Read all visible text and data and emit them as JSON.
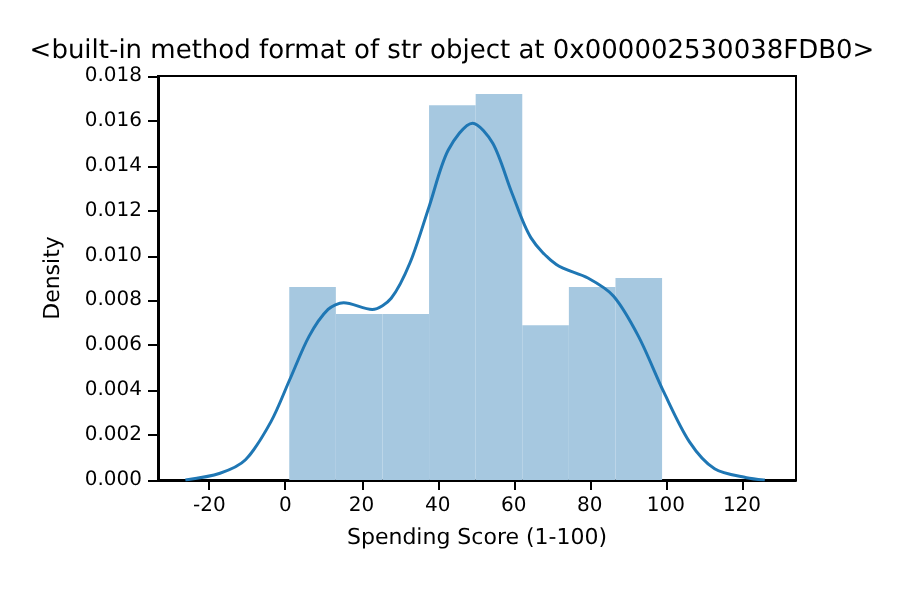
{
  "chart_data": {
    "type": "histogram",
    "title": "<built-in method format of str object at 0x000002530038FDB0>",
    "xlabel": "Spending Score (1-100)",
    "ylabel": "Density",
    "xlim": [
      -33.5,
      134.2
    ],
    "xticks": [
      -20,
      0,
      20,
      40,
      60,
      80,
      100,
      120
    ],
    "ylim": [
      0,
      0.018
    ],
    "yticks": [
      {
        "value": 0,
        "label": "0.000"
      },
      {
        "value": 0.002,
        "label": "0.002"
      },
      {
        "value": 0.004,
        "label": "0.004"
      },
      {
        "value": 0.006,
        "label": "0.006"
      },
      {
        "value": 0.008,
        "label": "0.008"
      },
      {
        "value": 0.01,
        "label": "0.010"
      },
      {
        "value": 0.012,
        "label": "0.012"
      },
      {
        "value": 0.014,
        "label": "0.014"
      },
      {
        "value": 0.016,
        "label": "0.016"
      },
      {
        "value": 0.018,
        "label": "0.018"
      }
    ],
    "marker": "none",
    "line_style": "solid",
    "series": [
      {
        "color": "#a6c8e0",
        "bins": [
          1,
          13.25,
          25.5,
          37.75,
          50,
          62.25,
          74.5,
          86.75,
          99
        ],
        "values": [
          0.0086,
          0.0074,
          0.0074,
          0.0167,
          0.0172,
          0.0069,
          0.0086,
          0.009
        ]
      },
      {
        "type": "line",
        "color": "#1f77b4",
        "x": [
          -26.3,
          -17.2,
          -10.5,
          -3.8,
          1.2,
          6.2,
          11.2,
          15.3,
          22.8,
          27.8,
          32.8,
          37.8,
          42.8,
          49.2,
          54.5,
          59.5,
          64.5,
          71.2,
          79.5,
          86.2,
          92.8,
          99.5,
          106.2,
          112.8,
          121.2,
          126
        ],
        "values": [
          0,
          0.0003,
          0.0009,
          0.0026,
          0.0045,
          0.0064,
          0.0076,
          0.0079,
          0.0076,
          0.0081,
          0.0097,
          0.0122,
          0.0147,
          0.0159,
          0.015,
          0.0128,
          0.0108,
          0.0096,
          0.009,
          0.0082,
          0.0064,
          0.0039,
          0.0017,
          0.0005,
          0.0001,
          0
        ]
      }
    ]
  }
}
